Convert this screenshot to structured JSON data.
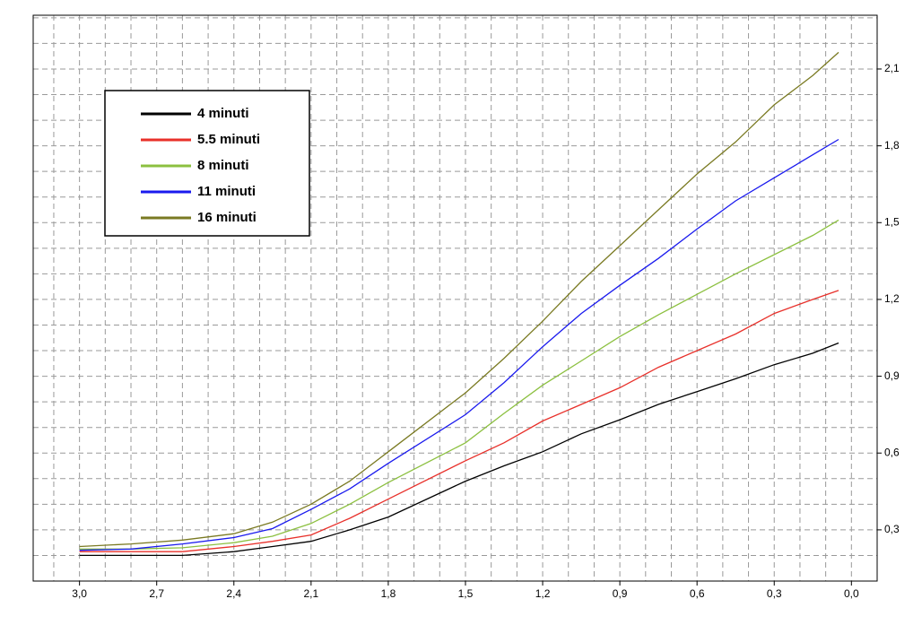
{
  "chart_data": {
    "type": "line",
    "x": [
      3.0,
      2.8,
      2.6,
      2.4,
      2.25,
      2.1,
      1.95,
      1.8,
      1.5,
      1.35,
      1.2,
      1.05,
      0.9,
      0.75,
      0.6,
      0.45,
      0.3,
      0.15,
      0.05
    ],
    "series": [
      {
        "name": "4 minuti",
        "color": "#000000",
        "values": [
          0.2,
          0.2,
          0.2,
          0.215,
          0.235,
          0.255,
          0.3,
          0.35,
          0.49,
          0.55,
          0.605,
          0.675,
          0.73,
          0.79,
          0.84,
          0.89,
          0.945,
          0.99,
          1.03
        ]
      },
      {
        "name": "5.5 minuti",
        "color": "#e8302a",
        "values": [
          0.215,
          0.215,
          0.215,
          0.235,
          0.255,
          0.28,
          0.345,
          0.42,
          0.57,
          0.64,
          0.725,
          0.79,
          0.855,
          0.935,
          1.0,
          1.065,
          1.145,
          1.2,
          1.235
        ]
      },
      {
        "name": "8 minuti",
        "color": "#8cc040",
        "values": [
          0.225,
          0.225,
          0.23,
          0.25,
          0.275,
          0.325,
          0.4,
          0.485,
          0.64,
          0.755,
          0.865,
          0.96,
          1.055,
          1.14,
          1.22,
          1.3,
          1.375,
          1.45,
          1.51
        ]
      },
      {
        "name": "11 minuti",
        "color": "#1a1aee",
        "values": [
          0.22,
          0.225,
          0.245,
          0.27,
          0.305,
          0.38,
          0.46,
          0.56,
          0.75,
          0.875,
          1.015,
          1.145,
          1.255,
          1.36,
          1.475,
          1.585,
          1.675,
          1.765,
          1.825
        ]
      },
      {
        "name": "16 minuti",
        "color": "#7a7a22",
        "values": [
          0.235,
          0.245,
          0.26,
          0.285,
          0.33,
          0.4,
          0.49,
          0.605,
          0.835,
          0.97,
          1.115,
          1.27,
          1.41,
          1.55,
          1.69,
          1.815,
          1.96,
          2.075,
          2.165
        ]
      }
    ],
    "xlim": [
      3.18,
      -0.1
    ],
    "xticks": [
      {
        "value": 3.0,
        "label": "3,0"
      },
      {
        "value": 2.7,
        "label": "2,7"
      },
      {
        "value": 2.4,
        "label": "2,4"
      },
      {
        "value": 2.1,
        "label": "2,1"
      },
      {
        "value": 1.8,
        "label": "1,8"
      },
      {
        "value": 1.5,
        "label": "1,5"
      },
      {
        "value": 1.2,
        "label": "1,2"
      },
      {
        "value": 0.9,
        "label": "0,9"
      },
      {
        "value": 0.6,
        "label": "0,6"
      },
      {
        "value": 0.3,
        "label": "0,3"
      },
      {
        "value": 0.0,
        "label": "0,0"
      }
    ],
    "ylim": [
      0.1,
      2.31
    ],
    "yticks": [
      {
        "value": 0.3,
        "label": "0,3"
      },
      {
        "value": 0.6,
        "label": "0,6"
      },
      {
        "value": 0.9,
        "label": "0,9"
      },
      {
        "value": 1.2,
        "label": "1,2"
      },
      {
        "value": 1.5,
        "label": "1,5"
      },
      {
        "value": 1.8,
        "label": "1,8"
      },
      {
        "value": 2.1,
        "label": "2,1"
      }
    ],
    "grid": true,
    "grid_step": 0.1,
    "y_axis_side": "right",
    "legend": "upper-left"
  }
}
